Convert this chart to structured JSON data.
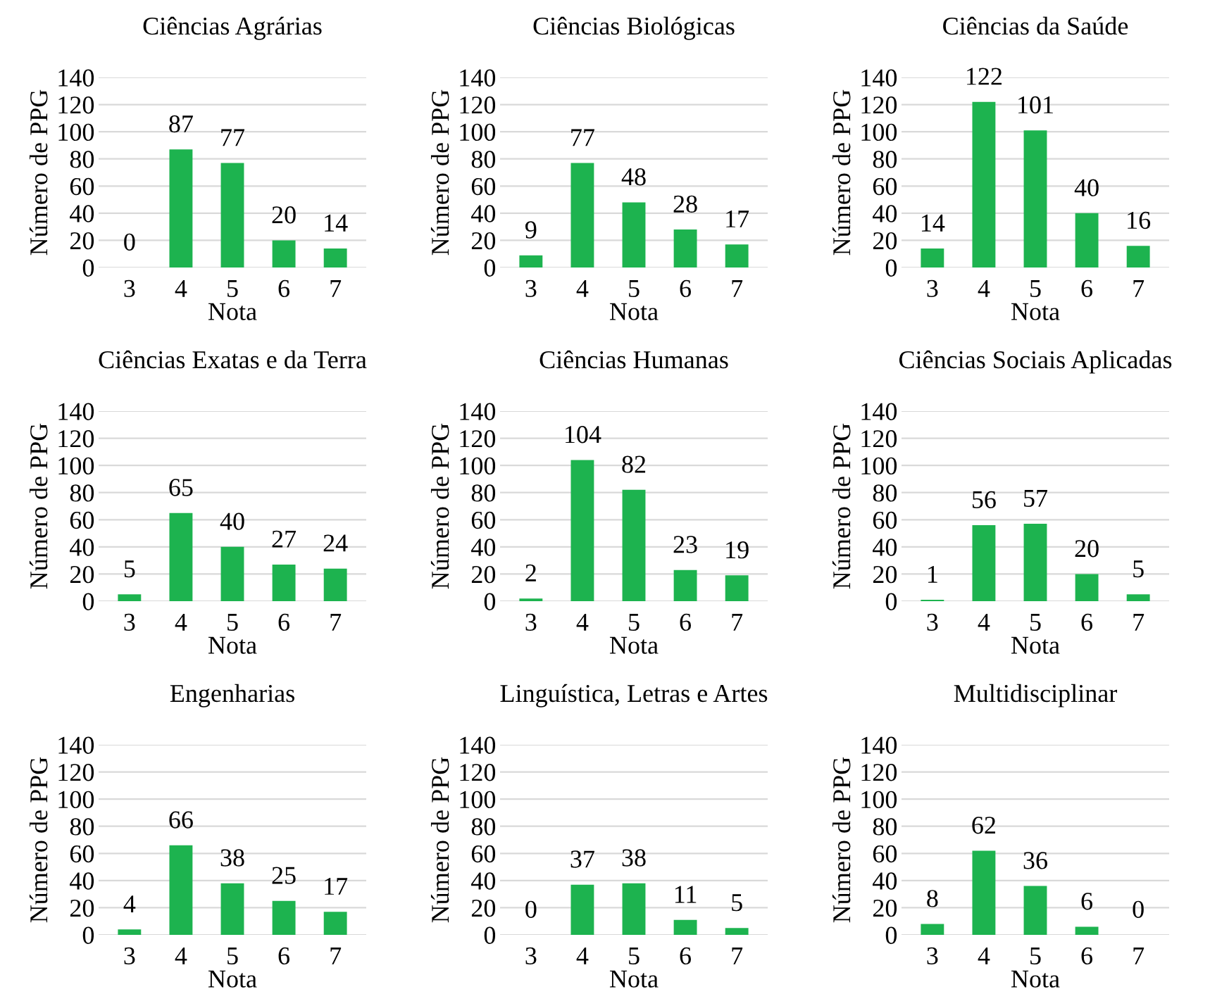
{
  "chart_data": [
    {
      "type": "bar",
      "title": "Ciências Agrárias",
      "xlabel": "Nota",
      "ylabel": "Número de PPG",
      "categories": [
        "3",
        "4",
        "5",
        "6",
        "7"
      ],
      "values": [
        0,
        87,
        77,
        20,
        14
      ],
      "color": "#1db34f",
      "ylim": [
        0,
        140
      ],
      "yticks": [
        0,
        20,
        40,
        60,
        80,
        100,
        120,
        140
      ],
      "grid": "y",
      "data_labels": true
    },
    {
      "type": "bar",
      "title": "Ciências Biológicas",
      "xlabel": "Nota",
      "ylabel": "Número de PPG",
      "categories": [
        "3",
        "4",
        "5",
        "6",
        "7"
      ],
      "values": [
        9,
        77,
        48,
        28,
        17
      ],
      "color": "#1db34f",
      "ylim": [
        0,
        140
      ],
      "yticks": [
        0,
        20,
        40,
        60,
        80,
        100,
        120,
        140
      ],
      "grid": "y",
      "data_labels": true
    },
    {
      "type": "bar",
      "title": "Ciências da Saúde",
      "xlabel": "Nota",
      "ylabel": "Número de PPG",
      "categories": [
        "3",
        "4",
        "5",
        "6",
        "7"
      ],
      "values": [
        14,
        122,
        101,
        40,
        16
      ],
      "color": "#1db34f",
      "ylim": [
        0,
        140
      ],
      "yticks": [
        0,
        20,
        40,
        60,
        80,
        100,
        120,
        140
      ],
      "grid": "y",
      "data_labels": true
    },
    {
      "type": "bar",
      "title": "Ciências Exatas e da Terra",
      "xlabel": "Nota",
      "ylabel": "Número de PPG",
      "categories": [
        "3",
        "4",
        "5",
        "6",
        "7"
      ],
      "values": [
        5,
        65,
        40,
        27,
        24
      ],
      "color": "#1db34f",
      "ylim": [
        0,
        140
      ],
      "yticks": [
        0,
        20,
        40,
        60,
        80,
        100,
        120,
        140
      ],
      "grid": "y",
      "data_labels": true
    },
    {
      "type": "bar",
      "title": "Ciências Humanas",
      "xlabel": "Nota",
      "ylabel": "Número de PPG",
      "categories": [
        "3",
        "4",
        "5",
        "6",
        "7"
      ],
      "values": [
        2,
        104,
        82,
        23,
        19
      ],
      "color": "#1db34f",
      "ylim": [
        0,
        140
      ],
      "yticks": [
        0,
        20,
        40,
        60,
        80,
        100,
        120,
        140
      ],
      "grid": "y",
      "data_labels": true
    },
    {
      "type": "bar",
      "title": "Ciências Sociais Aplicadas",
      "xlabel": "Nota",
      "ylabel": "Número de PPG",
      "categories": [
        "3",
        "4",
        "5",
        "6",
        "7"
      ],
      "values": [
        1,
        56,
        57,
        20,
        5
      ],
      "color": "#1db34f",
      "ylim": [
        0,
        140
      ],
      "yticks": [
        0,
        20,
        40,
        60,
        80,
        100,
        120,
        140
      ],
      "grid": "y",
      "data_labels": true
    },
    {
      "type": "bar",
      "title": "Engenharias",
      "xlabel": "Nota",
      "ylabel": "Número de PPG",
      "categories": [
        "3",
        "4",
        "5",
        "6",
        "7"
      ],
      "values": [
        4,
        66,
        38,
        25,
        17
      ],
      "color": "#1db34f",
      "ylim": [
        0,
        140
      ],
      "yticks": [
        0,
        20,
        40,
        60,
        80,
        100,
        120,
        140
      ],
      "grid": "y",
      "data_labels": true
    },
    {
      "type": "bar",
      "title": "Linguística, Letras e Artes",
      "xlabel": "Nota",
      "ylabel": "Número de PPG",
      "categories": [
        "3",
        "4",
        "5",
        "6",
        "7"
      ],
      "values": [
        0,
        37,
        38,
        11,
        5
      ],
      "color": "#1db34f",
      "ylim": [
        0,
        140
      ],
      "yticks": [
        0,
        20,
        40,
        60,
        80,
        100,
        120,
        140
      ],
      "grid": "y",
      "data_labels": true
    },
    {
      "type": "bar",
      "title": "Multidisciplinar",
      "xlabel": "Nota",
      "ylabel": "Número de PPG",
      "categories": [
        "3",
        "4",
        "5",
        "6",
        "7"
      ],
      "values": [
        8,
        62,
        36,
        6,
        0
      ],
      "color": "#1db34f",
      "ylim": [
        0,
        140
      ],
      "yticks": [
        0,
        20,
        40,
        60,
        80,
        100,
        120,
        140
      ],
      "grid": "y",
      "data_labels": true
    }
  ]
}
